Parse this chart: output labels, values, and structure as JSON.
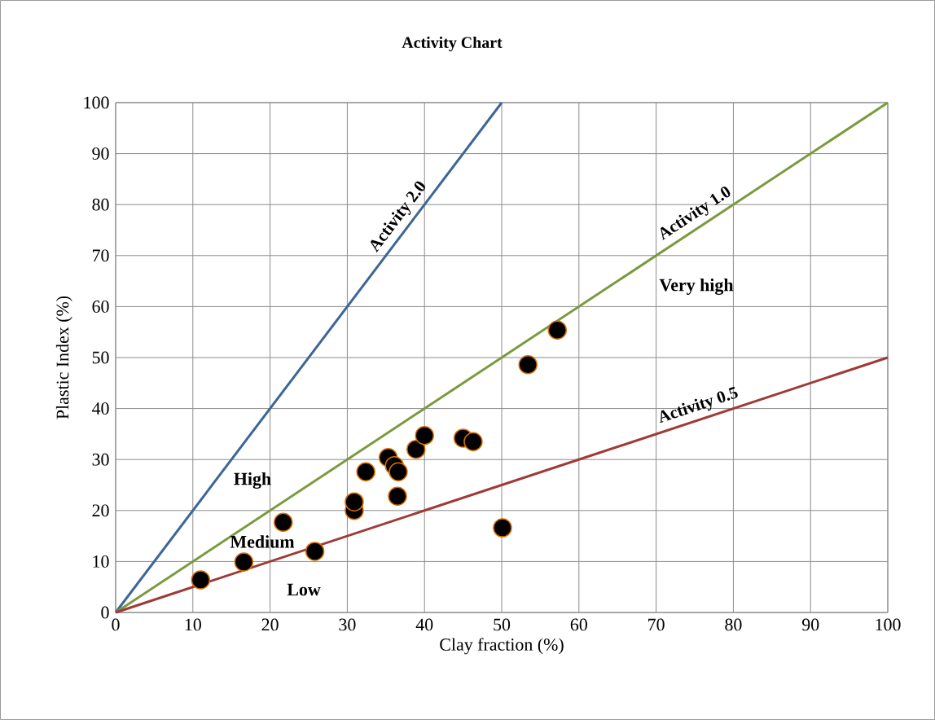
{
  "chart_data": {
    "type": "scatter",
    "title": "Activity Chart",
    "xlabel": "Clay fraction (%)",
    "ylabel": "Plastic Index  (%)",
    "xlim": [
      0,
      100
    ],
    "ylim": [
      0,
      100
    ],
    "xticks": [
      0,
      10,
      20,
      30,
      40,
      50,
      60,
      70,
      80,
      90,
      100
    ],
    "yticks": [
      0,
      10,
      20,
      30,
      40,
      50,
      60,
      70,
      80,
      90,
      100
    ],
    "grid": true,
    "series": [
      {
        "type": "line",
        "marker": "none",
        "name": "Activity  2.0",
        "color": "#3d6697",
        "x": [
          0,
          50
        ],
        "values": [
          0,
          100
        ]
      },
      {
        "type": "line",
        "marker": "none",
        "name": "Activity 1.0",
        "color": "#7a9a3e",
        "x": [
          0,
          100
        ],
        "values": [
          0,
          100
        ]
      },
      {
        "type": "line",
        "marker": "none",
        "name": "Activity 0.5",
        "color": "#9e3b37",
        "x": [
          0,
          100
        ],
        "values": [
          0,
          50
        ]
      },
      {
        "marker": "circle",
        "color": "#000000",
        "x": [
          11.0,
          16.6,
          21.7,
          25.8,
          30.9,
          30.9,
          32.4,
          35.3,
          36.1,
          36.6,
          36.5,
          38.9,
          40.0,
          45.0,
          46.3,
          50.1,
          53.4,
          57.2
        ],
        "values": [
          6.4,
          9.9,
          17.7,
          12.0,
          20.0,
          21.7,
          27.6,
          30.4,
          28.8,
          27.6,
          22.8,
          32.0,
          34.7,
          34.2,
          33.5,
          16.6,
          48.6,
          55.4
        ]
      }
    ],
    "annotations": [
      "High",
      "Medium",
      "Low",
      "Very high"
    ]
  }
}
